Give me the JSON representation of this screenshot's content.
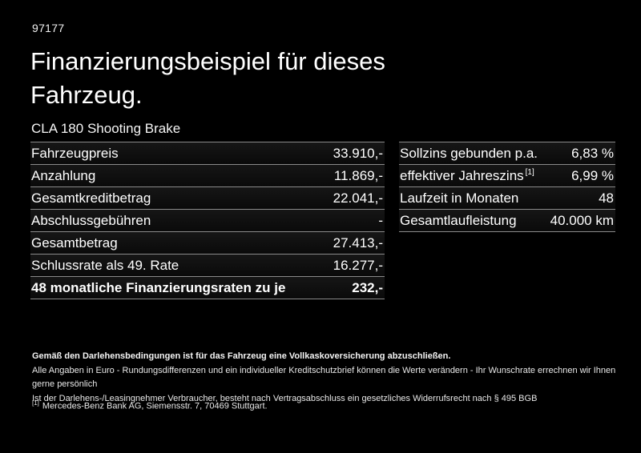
{
  "page": {
    "doc_number": "97177",
    "title_line1": "Finanzierungsbeispiel für dieses",
    "title_line2": "Fahrzeug.",
    "vehicle_model": "CLA 180 Shooting Brake"
  },
  "finance_table": {
    "rows": [
      {
        "label": "Fahrzeugpreis",
        "value": "33.910,-"
      },
      {
        "label": "Anzahlung",
        "value": "11.869,-"
      },
      {
        "label": "Gesamtkreditbetrag",
        "value": "22.041,-"
      },
      {
        "label": "Abschlussgebühren",
        "value": "-"
      },
      {
        "label": "Gesamtbetrag",
        "value": "27.413,-"
      },
      {
        "label": "Schlussrate als 49. Rate",
        "value": "16.277,-"
      },
      {
        "label": "48 monatliche Finanzierungsraten zu je",
        "value": "232,-"
      }
    ]
  },
  "conditions_table": {
    "rows": [
      {
        "label": "Sollzins gebunden p.a.",
        "value": "6,83 %"
      },
      {
        "label": "effektiver Jahreszins",
        "sup": "[1]",
        "value": "6,99 %"
      },
      {
        "label": "Laufzeit in Monaten",
        "value": "48"
      },
      {
        "label": "Gesamtlaufleistung",
        "value": "40.000 km"
      }
    ]
  },
  "fine_print": {
    "line1": "Gemäß den Darlehensbedingungen ist für das Fahrzeug eine Vollkaskoversicherung abzuschließen.",
    "line2": "Alle Angaben in Euro - Rundungsdifferenzen und ein individueller Kreditschutzbrief können die Werte verändern - Ihr Wunschrate errechnen wir Ihnen gerne persönlich",
    "line3": "Ist der Darlehens-/Leasingnehmer Verbraucher, besteht nach Vertragsabschluss ein gesetzliches Widerrufsrecht nach § 495 BGB"
  },
  "footnote": {
    "marker": "[1]",
    "text": "Mercedes-Benz Bank AG, Siemensstr. 7, 70469 Stuttgart."
  },
  "colors": {
    "background": "#000000",
    "text": "#ffffff",
    "divider": "#8a8a8a"
  }
}
